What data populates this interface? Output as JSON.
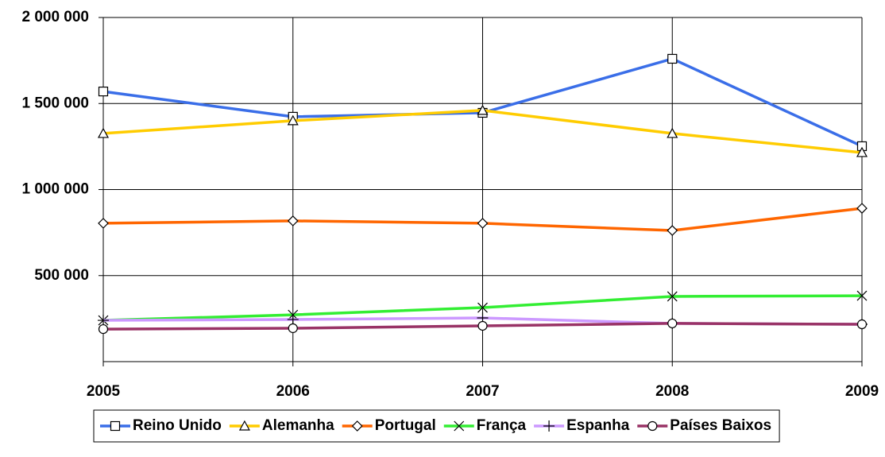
{
  "chart_data": {
    "type": "line",
    "categories": [
      "2005",
      "2006",
      "2007",
      "2008",
      "2009"
    ],
    "ylim": [
      0,
      2000000
    ],
    "yticks": [
      {
        "value": 500000,
        "label": "500 000"
      },
      {
        "value": 1000000,
        "label": "1 000 000"
      },
      {
        "value": 1500000,
        "label": "1 500 000"
      },
      {
        "value": 2000000,
        "label": "2 000 000"
      }
    ],
    "grid": true,
    "legend": "bottom",
    "series": [
      {
        "name": "Reino Unido",
        "color": "#3a6ee8",
        "marker": "square",
        "values": [
          1570000,
          1423000,
          1446000,
          1760000,
          1252000
        ]
      },
      {
        "name": "Alemanha",
        "color": "#ffcc00",
        "marker": "triangle",
        "values": [
          1326000,
          1400000,
          1460000,
          1326000,
          1215000
        ]
      },
      {
        "name": "Portugal",
        "color": "#ff6600",
        "marker": "diamond",
        "values": [
          804000,
          818000,
          804000,
          762000,
          891000
        ]
      },
      {
        "name": "França",
        "color": "#33ee33",
        "marker": "x",
        "values": [
          240000,
          272000,
          314000,
          379000,
          383000
        ]
      },
      {
        "name": "Espanha",
        "color": "#cc99ff",
        "marker": "plus",
        "values": [
          240000,
          245000,
          254000,
          222000,
          217000
        ]
      },
      {
        "name": "Países Baixos",
        "color": "#993366",
        "marker": "circle",
        "values": [
          189000,
          194000,
          208000,
          222000,
          217000
        ]
      }
    ]
  }
}
